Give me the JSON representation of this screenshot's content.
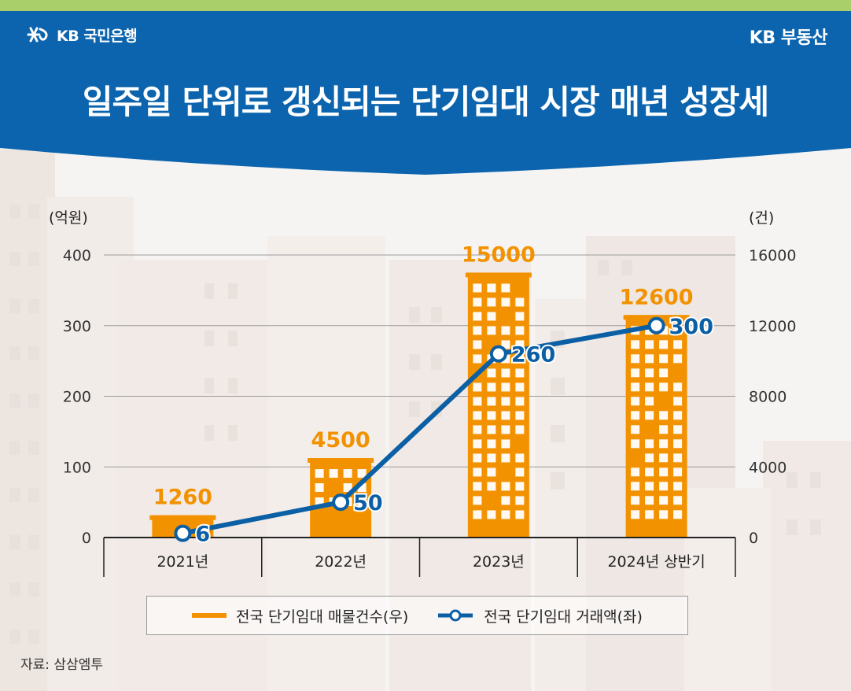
{
  "header": {
    "bank_logo": "KB 국민은행",
    "brand_logo": "KB 부동산",
    "title": "일주일 단위로 갱신되는 단기임대 시장 매년 성장세"
  },
  "colors": {
    "header_blue": "#0b64ad",
    "bar_orange": "#f39200",
    "line_blue": "#0b5fa5",
    "accent_green": "#a9cf6a"
  },
  "chart_data": {
    "type": "bar",
    "title": "",
    "categories": [
      "2021년",
      "2022년",
      "2023년",
      "2024년 상반기"
    ],
    "series": [
      {
        "name": "전국 단기임대 매물건수(우)",
        "type": "bar",
        "axis": "right",
        "values": [
          1260,
          4500,
          15000,
          12600
        ],
        "labels": [
          "1260",
          "4500",
          "15000",
          "12600"
        ]
      },
      {
        "name": "전국 단기임대 거래액(좌)",
        "type": "line",
        "axis": "left",
        "values": [
          6,
          50,
          260,
          300
        ],
        "labels": [
          "6",
          "50",
          "260",
          "300"
        ]
      }
    ],
    "left_axis": {
      "unit": "(억원)",
      "range": [
        0,
        400
      ],
      "ticks": [
        "0",
        "100",
        "200",
        "300",
        "400"
      ]
    },
    "right_axis": {
      "unit": "(건)",
      "range": [
        0,
        16000
      ],
      "ticks": [
        "0",
        "4000",
        "8000",
        "12000",
        "16000"
      ]
    },
    "grid": true,
    "legend_position": "bottom"
  },
  "source": "자료: 삼삼엠투"
}
